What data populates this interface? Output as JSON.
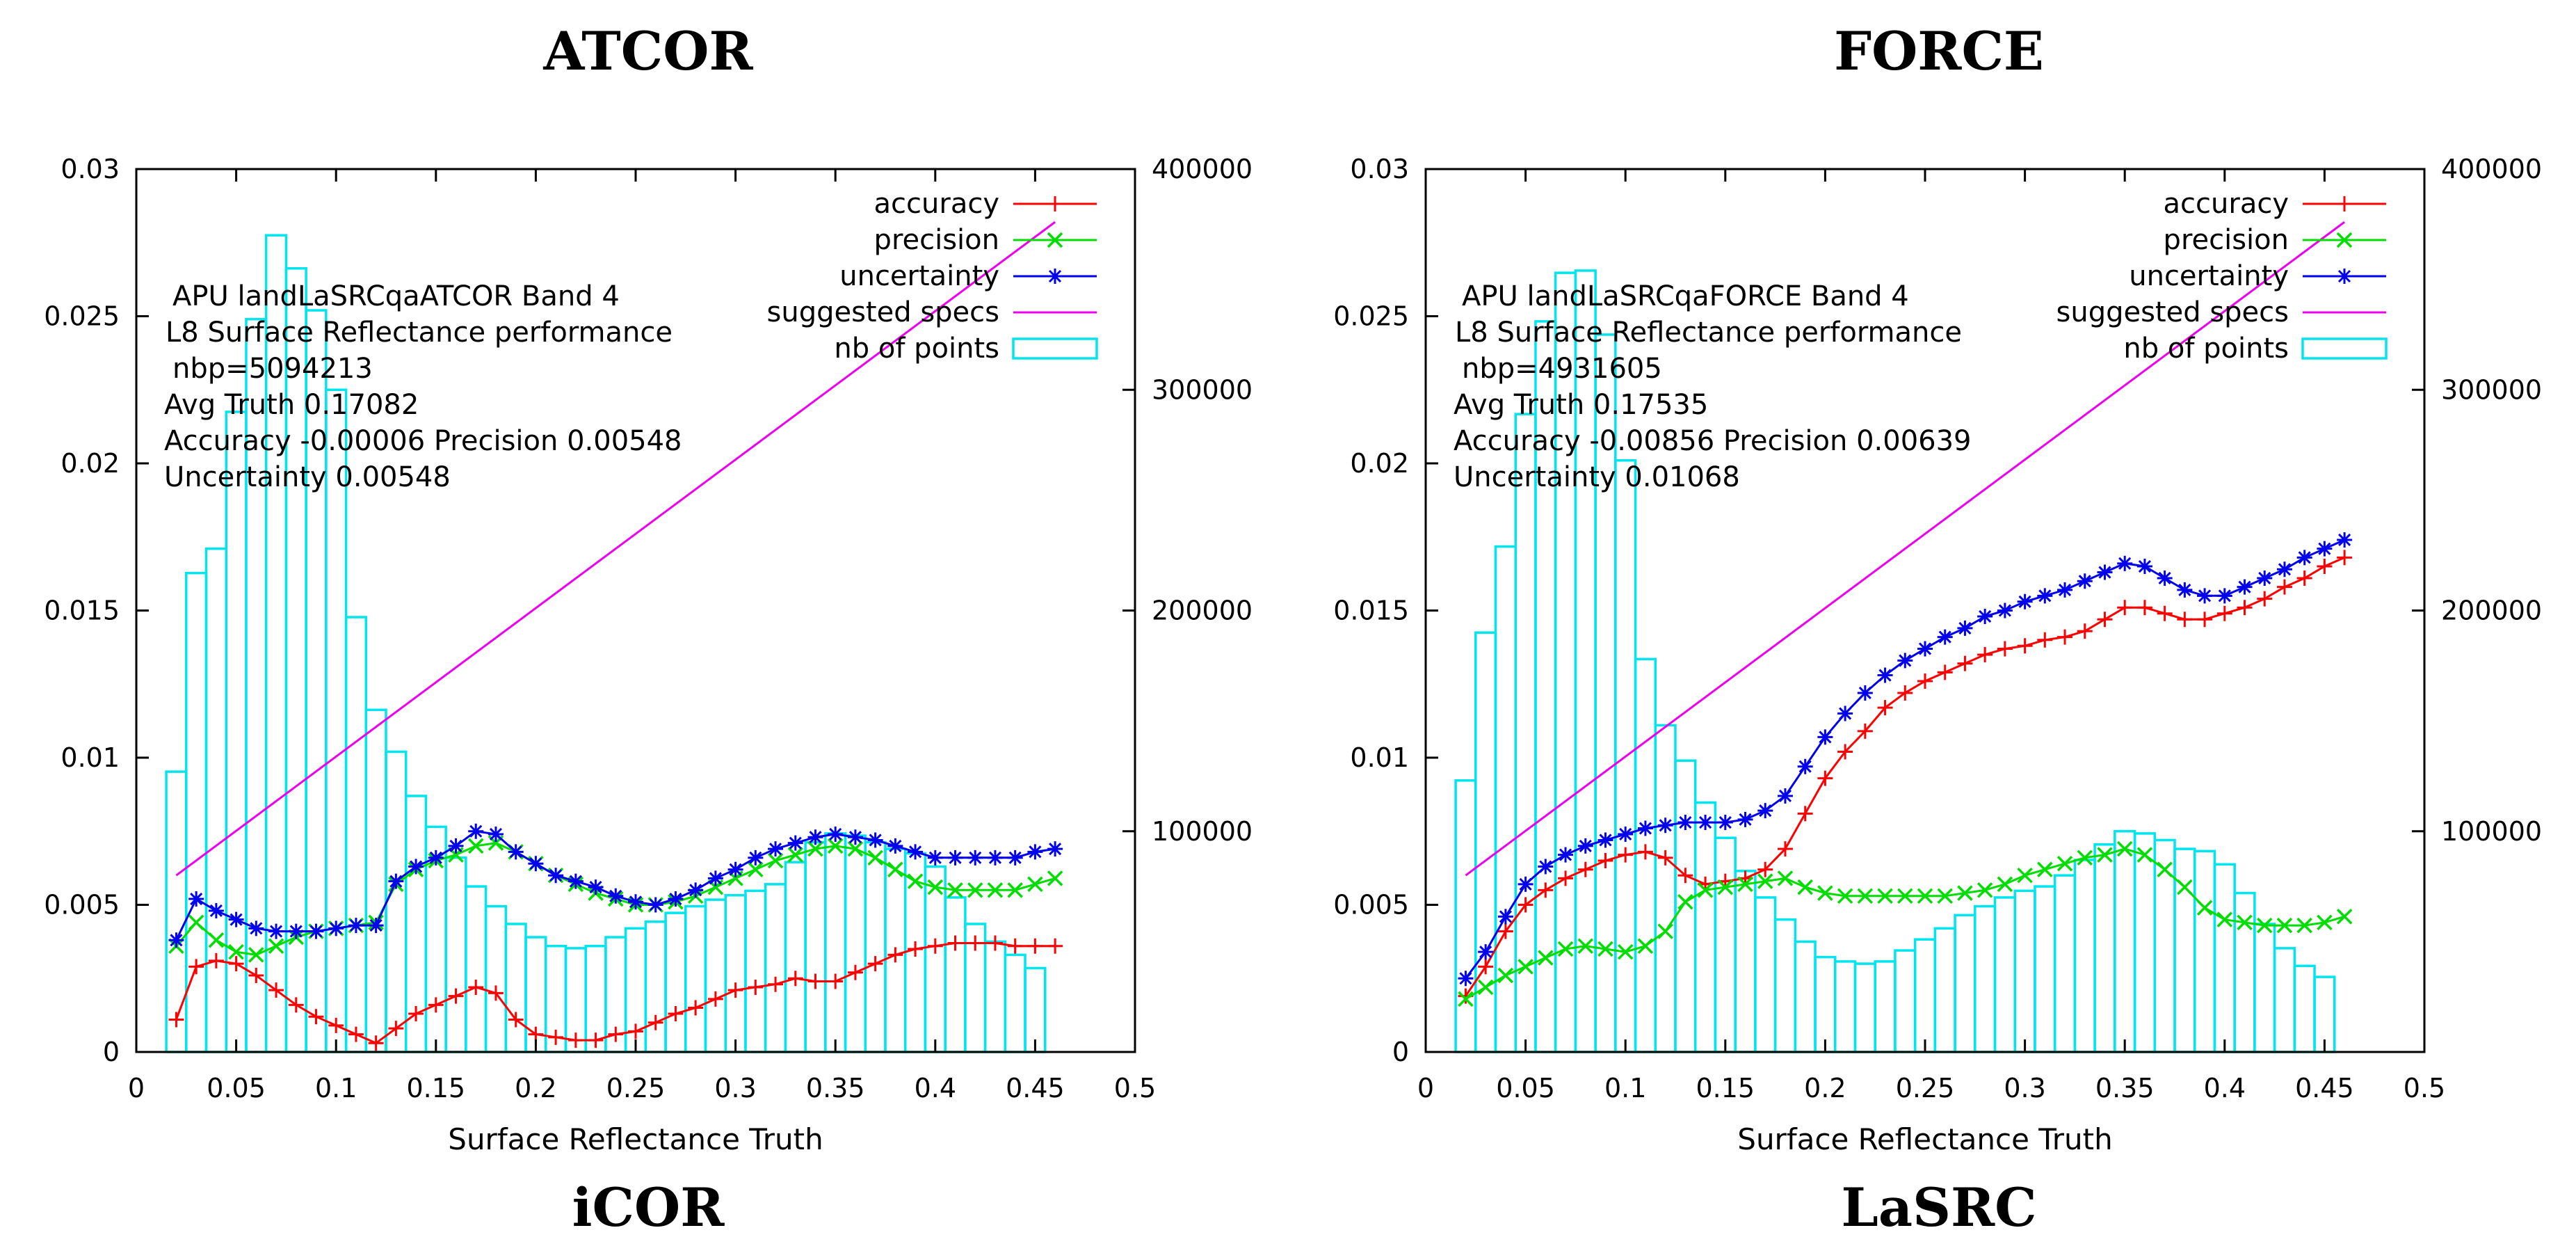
{
  "headings": {
    "top_left": "ATCOR",
    "top_right": "FORCE",
    "bottom_left": "iCOR",
    "bottom_right": "LaSRC"
  },
  "colors": {
    "accuracy": "#ff0000",
    "precision": "#00dd00",
    "uncertainty": "#0000ee",
    "specs": "#ee00ee",
    "histogram": "#00e5ee"
  },
  "chart_data": [
    {
      "type": "line",
      "name": "ATCOR",
      "xlabel": "Surface Reflectance Truth",
      "ylabel": "",
      "xlim": [
        0,
        0.5
      ],
      "ylim": [
        0,
        0.03
      ],
      "y2lim": [
        0,
        400000
      ],
      "x_ticks": [
        "0",
        "0.05",
        "0.1",
        "0.15",
        "0.2",
        "0.25",
        "0.3",
        "0.35",
        "0.4",
        "0.45",
        "0.5"
      ],
      "y_ticks": [
        "0",
        "0.005",
        "0.01",
        "0.015",
        "0.02",
        "0.025",
        "0.03"
      ],
      "y2_ticks": [
        "100000",
        "200000",
        "300000",
        "400000"
      ],
      "legend": [
        "accuracy",
        "precision",
        "uncertainty",
        "suggested specs",
        "nb of points"
      ],
      "annotations": [
        "APU landLaSRCqaATCOR Band 4",
        "L8 Surface Reflectance performance",
        "nbp=5094213",
        "Avg Truth 0.17082",
        "Accuracy -0.00006 Precision 0.00548",
        "Uncertainty 0.00548"
      ],
      "suggested_specs": {
        "x": [
          0.02,
          0.46
        ],
        "y": [
          0.006,
          0.0282
        ]
      },
      "histogram": {
        "bin_width": 0.01,
        "x": [
          0.02,
          0.03,
          0.04,
          0.05,
          0.06,
          0.07,
          0.08,
          0.09,
          0.1,
          0.11,
          0.12,
          0.13,
          0.14,
          0.15,
          0.16,
          0.17,
          0.18,
          0.19,
          0.2,
          0.21,
          0.22,
          0.23,
          0.24,
          0.25,
          0.26,
          0.27,
          0.28,
          0.29,
          0.3,
          0.31,
          0.32,
          0.33,
          0.34,
          0.35,
          0.36,
          0.37,
          0.38,
          0.39,
          0.4,
          0.41,
          0.42,
          0.43,
          0.44,
          0.45
        ],
        "counts": [
          127000,
          217000,
          228000,
          290000,
          332000,
          370000,
          355000,
          336000,
          300000,
          197000,
          155000,
          136000,
          116000,
          102000,
          88000,
          75000,
          66000,
          58000,
          52000,
          48000,
          47000,
          48000,
          52000,
          56000,
          59000,
          63000,
          66000,
          69000,
          71000,
          73000,
          76000,
          86000,
          95000,
          99000,
          98000,
          95000,
          92000,
          90000,
          84000,
          70000,
          58000,
          50000,
          44000,
          38000
        ]
      },
      "series": [
        {
          "name": "accuracy",
          "x": [
            0.02,
            0.03,
            0.04,
            0.05,
            0.06,
            0.07,
            0.08,
            0.09,
            0.1,
            0.11,
            0.12,
            0.13,
            0.14,
            0.15,
            0.16,
            0.17,
            0.18,
            0.19,
            0.2,
            0.21,
            0.22,
            0.23,
            0.24,
            0.25,
            0.26,
            0.27,
            0.28,
            0.29,
            0.3,
            0.31,
            0.32,
            0.33,
            0.34,
            0.35,
            0.36,
            0.37,
            0.38,
            0.39,
            0.4,
            0.41,
            0.42,
            0.43,
            0.44,
            0.45,
            0.46
          ],
          "values": [
            0.0011,
            0.0029,
            0.0031,
            0.003,
            0.0026,
            0.0021,
            0.0016,
            0.0012,
            0.0009,
            0.0006,
            0.0003,
            0.0008,
            0.0013,
            0.0016,
            0.0019,
            0.0022,
            0.002,
            0.0011,
            0.0006,
            0.0005,
            0.0004,
            0.0004,
            0.0006,
            0.0007,
            0.001,
            0.0013,
            0.0015,
            0.0018,
            0.0021,
            0.0022,
            0.0023,
            0.0025,
            0.0024,
            0.0024,
            0.0027,
            0.003,
            0.0033,
            0.0035,
            0.0036,
            0.0037,
            0.0037,
            0.0037,
            0.0036,
            0.0036,
            0.0036
          ]
        },
        {
          "name": "precision",
          "x": [
            0.02,
            0.03,
            0.04,
            0.05,
            0.06,
            0.07,
            0.08,
            0.09,
            0.1,
            0.11,
            0.12,
            0.13,
            0.14,
            0.15,
            0.16,
            0.17,
            0.18,
            0.19,
            0.2,
            0.21,
            0.22,
            0.23,
            0.24,
            0.25,
            0.26,
            0.27,
            0.28,
            0.29,
            0.3,
            0.31,
            0.32,
            0.33,
            0.34,
            0.35,
            0.36,
            0.37,
            0.38,
            0.39,
            0.4,
            0.41,
            0.42,
            0.43,
            0.44,
            0.45,
            0.46
          ],
          "values": [
            0.0036,
            0.0044,
            0.0038,
            0.0034,
            0.0033,
            0.0036,
            0.0039,
            0.0041,
            0.0042,
            0.0043,
            0.0044,
            0.0057,
            0.0062,
            0.0065,
            0.0067,
            0.007,
            0.0071,
            0.0068,
            0.0064,
            0.006,
            0.0057,
            0.0054,
            0.0052,
            0.005,
            0.005,
            0.0051,
            0.0053,
            0.0056,
            0.0059,
            0.0062,
            0.0065,
            0.0067,
            0.0069,
            0.007,
            0.0069,
            0.0066,
            0.0062,
            0.0058,
            0.0056,
            0.0055,
            0.0055,
            0.0055,
            0.0055,
            0.0057,
            0.0059
          ]
        },
        {
          "name": "uncertainty",
          "x": [
            0.02,
            0.03,
            0.04,
            0.05,
            0.06,
            0.07,
            0.08,
            0.09,
            0.1,
            0.11,
            0.12,
            0.13,
            0.14,
            0.15,
            0.16,
            0.17,
            0.18,
            0.19,
            0.2,
            0.21,
            0.22,
            0.23,
            0.24,
            0.25,
            0.26,
            0.27,
            0.28,
            0.29,
            0.3,
            0.31,
            0.32,
            0.33,
            0.34,
            0.35,
            0.36,
            0.37,
            0.38,
            0.39,
            0.4,
            0.41,
            0.42,
            0.43,
            0.44,
            0.45,
            0.46
          ],
          "values": [
            0.0038,
            0.0052,
            0.0048,
            0.0045,
            0.0042,
            0.0041,
            0.0041,
            0.0041,
            0.0042,
            0.0043,
            0.0043,
            0.0058,
            0.0063,
            0.0066,
            0.007,
            0.0075,
            0.0074,
            0.0068,
            0.0064,
            0.006,
            0.0058,
            0.0056,
            0.0053,
            0.0051,
            0.005,
            0.0052,
            0.0055,
            0.0059,
            0.0062,
            0.0066,
            0.0069,
            0.0071,
            0.0073,
            0.0074,
            0.0073,
            0.0072,
            0.007,
            0.0068,
            0.0066,
            0.0066,
            0.0066,
            0.0066,
            0.0066,
            0.0068,
            0.0069
          ]
        }
      ]
    },
    {
      "type": "line",
      "name": "FORCE",
      "xlabel": "Surface Reflectance Truth",
      "ylabel": "",
      "xlim": [
        0,
        0.5
      ],
      "ylim": [
        0,
        0.03
      ],
      "y2lim": [
        0,
        400000
      ],
      "x_ticks": [
        "0",
        "0.05",
        "0.1",
        "0.15",
        "0.2",
        "0.25",
        "0.3",
        "0.35",
        "0.4",
        "0.45",
        "0.5"
      ],
      "y_ticks": [
        "0",
        "0.005",
        "0.01",
        "0.015",
        "0.02",
        "0.025",
        "0.03"
      ],
      "y2_ticks": [
        "100000",
        "200000",
        "300000",
        "400000"
      ],
      "legend": [
        "accuracy",
        "precision",
        "uncertainty",
        "suggested specs",
        "nb of points"
      ],
      "annotations": [
        "APU landLaSRCqaFORCE Band 4",
        "L8 Surface Reflectance performance",
        "nbp=4931605",
        "Avg Truth 0.17535",
        "Accuracy -0.00856 Precision 0.00639",
        "Uncertainty 0.01068"
      ],
      "suggested_specs": {
        "x": [
          0.02,
          0.46
        ],
        "y": [
          0.006,
          0.0282
        ]
      },
      "histogram": {
        "bin_width": 0.01,
        "x": [
          0.02,
          0.03,
          0.04,
          0.05,
          0.06,
          0.07,
          0.08,
          0.09,
          0.1,
          0.11,
          0.12,
          0.13,
          0.14,
          0.15,
          0.16,
          0.17,
          0.18,
          0.19,
          0.2,
          0.21,
          0.22,
          0.23,
          0.24,
          0.25,
          0.26,
          0.27,
          0.28,
          0.29,
          0.3,
          0.31,
          0.32,
          0.33,
          0.34,
          0.35,
          0.36,
          0.37,
          0.38,
          0.39,
          0.4,
          0.41,
          0.42,
          0.43,
          0.44,
          0.45
        ],
        "counts": [
          123000,
          190000,
          229000,
          289000,
          331000,
          353000,
          354000,
          325000,
          268000,
          178000,
          148000,
          132000,
          113000,
          97000,
          82000,
          70000,
          60000,
          50000,
          43000,
          41000,
          40000,
          41000,
          46000,
          51000,
          56000,
          62000,
          66000,
          70000,
          73000,
          75000,
          80000,
          87000,
          94000,
          100000,
          99000,
          96000,
          92000,
          91000,
          85000,
          72000,
          58000,
          47000,
          39000,
          34000
        ]
      },
      "series": [
        {
          "name": "accuracy",
          "x": [
            0.02,
            0.03,
            0.04,
            0.05,
            0.06,
            0.07,
            0.08,
            0.09,
            0.1,
            0.11,
            0.12,
            0.13,
            0.14,
            0.15,
            0.16,
            0.17,
            0.18,
            0.19,
            0.2,
            0.21,
            0.22,
            0.23,
            0.24,
            0.25,
            0.26,
            0.27,
            0.28,
            0.29,
            0.3,
            0.31,
            0.32,
            0.33,
            0.34,
            0.35,
            0.36,
            0.37,
            0.38,
            0.39,
            0.4,
            0.41,
            0.42,
            0.43,
            0.44,
            0.45,
            0.46
          ],
          "values": [
            0.0019,
            0.0029,
            0.0041,
            0.005,
            0.0055,
            0.0059,
            0.0062,
            0.0065,
            0.0067,
            0.0068,
            0.0066,
            0.006,
            0.0057,
            0.0058,
            0.0059,
            0.0062,
            0.0069,
            0.0081,
            0.0093,
            0.0102,
            0.0109,
            0.0117,
            0.0122,
            0.0126,
            0.0129,
            0.0132,
            0.0135,
            0.0137,
            0.0138,
            0.014,
            0.0141,
            0.0143,
            0.0147,
            0.0151,
            0.0151,
            0.0149,
            0.0147,
            0.0147,
            0.0149,
            0.0151,
            0.0154,
            0.0158,
            0.0161,
            0.0165,
            0.0168
          ]
        },
        {
          "name": "precision",
          "x": [
            0.02,
            0.03,
            0.04,
            0.05,
            0.06,
            0.07,
            0.08,
            0.09,
            0.1,
            0.11,
            0.12,
            0.13,
            0.14,
            0.15,
            0.16,
            0.17,
            0.18,
            0.19,
            0.2,
            0.21,
            0.22,
            0.23,
            0.24,
            0.25,
            0.26,
            0.27,
            0.28,
            0.29,
            0.3,
            0.31,
            0.32,
            0.33,
            0.34,
            0.35,
            0.36,
            0.37,
            0.38,
            0.39,
            0.4,
            0.41,
            0.42,
            0.43,
            0.44,
            0.45,
            0.46
          ],
          "values": [
            0.0018,
            0.0022,
            0.0026,
            0.0029,
            0.0032,
            0.0035,
            0.0036,
            0.0035,
            0.0034,
            0.0036,
            0.0041,
            0.0051,
            0.0055,
            0.0056,
            0.0057,
            0.0058,
            0.0059,
            0.0056,
            0.0054,
            0.0053,
            0.0053,
            0.0053,
            0.0053,
            0.0053,
            0.0053,
            0.0054,
            0.0055,
            0.0057,
            0.006,
            0.0062,
            0.0064,
            0.0066,
            0.0067,
            0.0069,
            0.0067,
            0.0062,
            0.0056,
            0.0049,
            0.0045,
            0.0044,
            0.0043,
            0.0043,
            0.0043,
            0.0044,
            0.0046
          ]
        },
        {
          "name": "uncertainty",
          "x": [
            0.02,
            0.03,
            0.04,
            0.05,
            0.06,
            0.07,
            0.08,
            0.09,
            0.1,
            0.11,
            0.12,
            0.13,
            0.14,
            0.15,
            0.16,
            0.17,
            0.18,
            0.19,
            0.2,
            0.21,
            0.22,
            0.23,
            0.24,
            0.25,
            0.26,
            0.27,
            0.28,
            0.29,
            0.3,
            0.31,
            0.32,
            0.33,
            0.34,
            0.35,
            0.36,
            0.37,
            0.38,
            0.39,
            0.4,
            0.41,
            0.42,
            0.43,
            0.44,
            0.45,
            0.46
          ],
          "values": [
            0.0025,
            0.0034,
            0.0046,
            0.0057,
            0.0063,
            0.0067,
            0.007,
            0.0072,
            0.0074,
            0.0076,
            0.0077,
            0.0078,
            0.0078,
            0.0078,
            0.0079,
            0.0082,
            0.0087,
            0.0097,
            0.0107,
            0.0115,
            0.0122,
            0.0128,
            0.0133,
            0.0137,
            0.0141,
            0.0144,
            0.0148,
            0.015,
            0.0153,
            0.0155,
            0.0157,
            0.016,
            0.0163,
            0.0166,
            0.0165,
            0.0161,
            0.0157,
            0.0155,
            0.0155,
            0.0158,
            0.0161,
            0.0164,
            0.0168,
            0.0171,
            0.0174
          ]
        }
      ]
    }
  ]
}
